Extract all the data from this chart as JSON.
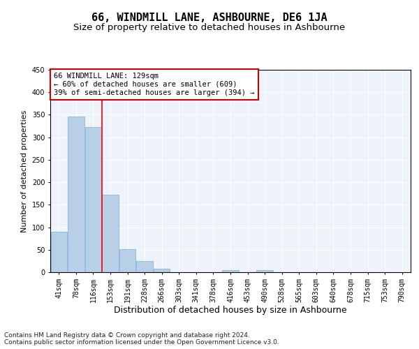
{
  "title": "66, WINDMILL LANE, ASHBOURNE, DE6 1JA",
  "subtitle": "Size of property relative to detached houses in Ashbourne",
  "xlabel": "Distribution of detached houses by size in Ashbourne",
  "ylabel": "Number of detached properties",
  "categories": [
    "41sqm",
    "78sqm",
    "116sqm",
    "153sqm",
    "191sqm",
    "228sqm",
    "266sqm",
    "303sqm",
    "341sqm",
    "378sqm",
    "416sqm",
    "453sqm",
    "490sqm",
    "528sqm",
    "565sqm",
    "603sqm",
    "640sqm",
    "678sqm",
    "715sqm",
    "753sqm",
    "790sqm"
  ],
  "values": [
    90,
    346,
    322,
    172,
    51,
    25,
    8,
    0,
    0,
    0,
    5,
    0,
    5,
    0,
    0,
    0,
    0,
    0,
    0,
    0,
    0
  ],
  "bar_color": "#b8cfe8",
  "bar_edge_color": "#7aadd4",
  "red_line_x": 2.5,
  "annotation_line1": "66 WINDMILL LANE: 129sqm",
  "annotation_line2": "← 60% of detached houses are smaller (609)",
  "annotation_line3": "39% of semi-detached houses are larger (394) →",
  "annotation_box_color": "#ffffff",
  "annotation_box_edge_color": "#cc0000",
  "ylim": [
    0,
    450
  ],
  "yticks": [
    0,
    50,
    100,
    150,
    200,
    250,
    300,
    350,
    400,
    450
  ],
  "bg_color": "#eef2fa",
  "grid_color": "#ffffff",
  "footer_line1": "Contains HM Land Registry data © Crown copyright and database right 2024.",
  "footer_line2": "Contains public sector information licensed under the Open Government Licence v3.0.",
  "title_fontsize": 11,
  "subtitle_fontsize": 9.5,
  "xlabel_fontsize": 9,
  "ylabel_fontsize": 8,
  "tick_fontsize": 7,
  "footer_fontsize": 6.5,
  "annotation_fontsize": 7.5
}
